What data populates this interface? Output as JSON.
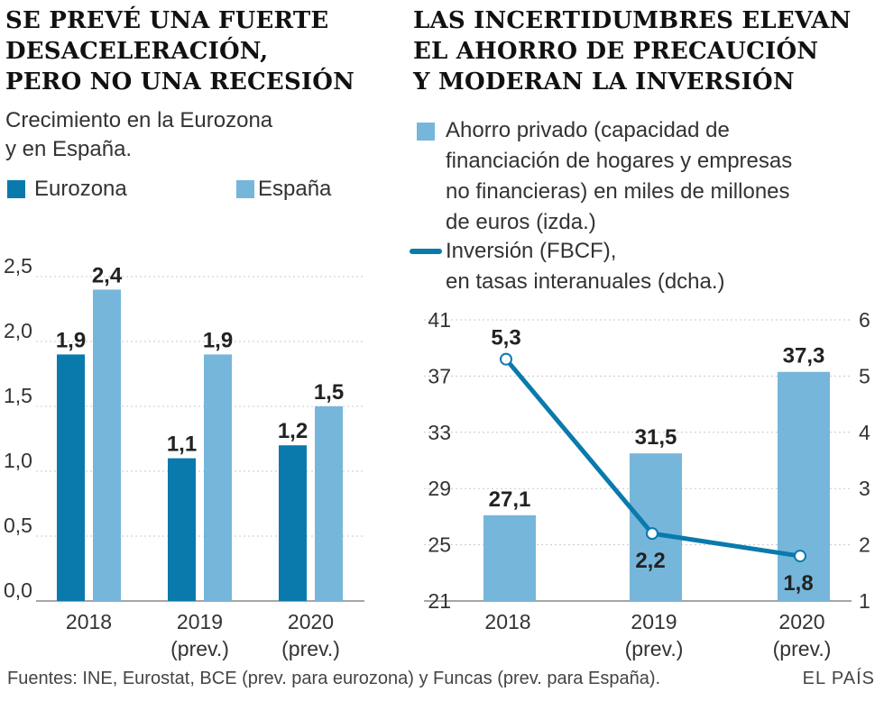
{
  "left": {
    "title_lines": [
      "SE PREVÉ UNA FUERTE",
      "DESACELERACIÓN,",
      "PERO NO UNA RECESIÓN"
    ],
    "subtitle_lines": [
      "Crecimiento en la Eurozona",
      "y en España."
    ],
    "legend": [
      {
        "label": "Eurozona",
        "color": "#0a7aad"
      },
      {
        "label": "España",
        "color": "#76b6db"
      }
    ]
  },
  "right": {
    "title_lines": [
      "LAS INCERTIDUMBRES ELEVAN",
      "EL AHORRO DE PRECAUCIÓN",
      "Y MODERAN LA INVERSIÓN"
    ],
    "legend_bar_lines": [
      "Ahorro privado (capacidad de",
      "financiación de hogares y empresas",
      "no financieras) en miles de millones",
      "de euros (izda.)"
    ],
    "legend_line_lines": [
      "Inversión (FBCF),",
      "en tasas interanuales (dcha.)"
    ],
    "bar_color": "#76b6db",
    "line_color": "#0a7aad"
  },
  "chart_data": [
    {
      "type": "bar",
      "title": "SE PREVÉ UNA FUERTE DESACELERACIÓN, PERO NO UNA RECESIÓN",
      "subtitle": "Crecimiento en la Eurozona y en España.",
      "categories": [
        [
          "2018"
        ],
        [
          "2019",
          "(prev.)"
        ],
        [
          "2020",
          "(prev.)"
        ]
      ],
      "series": [
        {
          "name": "Eurozona",
          "values": [
            1.9,
            1.1,
            1.2
          ],
          "labels": [
            "1,9",
            "1,1",
            "1,2"
          ],
          "color": "#0a7aad"
        },
        {
          "name": "España",
          "values": [
            2.4,
            1.9,
            1.5
          ],
          "labels": [
            "2,4",
            "1,9",
            "1,5"
          ],
          "color": "#76b6db"
        }
      ],
      "yticks": [
        0,
        0.5,
        1,
        1.5,
        2,
        2.5
      ],
      "ytick_labels": [
        "0,0",
        "0,5",
        "1,0",
        "1,5",
        "2,0",
        "2,5"
      ],
      "ylim": [
        0,
        2.5
      ],
      "grid": true
    },
    {
      "type": "bar+line",
      "title": "LAS INCERTIDUMBRES ELEVAN EL AHORRO DE PRECAUCIÓN Y MODERAN LA INVERSIÓN",
      "categories": [
        [
          "2018"
        ],
        [
          "2019",
          "(prev.)"
        ],
        [
          "2020",
          "(prev.)"
        ]
      ],
      "bar_series": {
        "name": "Ahorro privado (izda.)",
        "values": [
          27.1,
          31.5,
          37.3
        ],
        "labels": [
          "27,1",
          "31,5",
          "37,3"
        ]
      },
      "line_series": {
        "name": "Inversión (FBCF) (dcha.)",
        "values": [
          5.3,
          2.2,
          1.8
        ],
        "labels": [
          "5,3",
          "2,2",
          "1,8"
        ]
      },
      "y_left_ticks": [
        21,
        25,
        29,
        33,
        37,
        41
      ],
      "y_left_lim": [
        21,
        41
      ],
      "y_right_ticks": [
        1,
        2,
        3,
        4,
        5,
        6
      ],
      "y_right_lim": [
        1,
        6
      ],
      "grid": true
    }
  ],
  "footer": {
    "sources": "Fuentes: INE, Eurostat, BCE (prev. para eurozona)  y Funcas (prev. para España).",
    "brand": "EL PAÍS"
  }
}
